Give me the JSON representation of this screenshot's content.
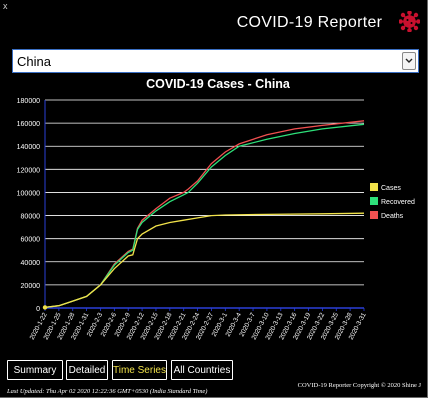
{
  "app": {
    "title": "COVID-19 Reporter",
    "corner_mark": "x"
  },
  "selector": {
    "selected": "China"
  },
  "tabs": [
    {
      "label": "Summary",
      "active": false
    },
    {
      "label": "Detailed",
      "active": false
    },
    {
      "label": "Time Series",
      "active": true
    },
    {
      "label": "All Countries",
      "active": false
    }
  ],
  "footer": {
    "last_updated": "Last Updated: Thu Apr 02 2020 12:22:36 GMT+0530 (India Standard Time)",
    "copyright": "COVID-19 Reporter Copyright © 2020 Shine J"
  },
  "colors": {
    "cases": "#f1e24a",
    "recovered": "#2ee07a",
    "deaths": "#f05050",
    "accent": "#c8102e"
  },
  "chart_data": {
    "type": "line",
    "title": "COVID-19 Cases - China",
    "xlabel": "",
    "ylabel": "",
    "ylim": [
      0,
      180000
    ],
    "yticks": [
      0,
      20000,
      40000,
      60000,
      80000,
      100000,
      120000,
      140000,
      160000,
      180000
    ],
    "xtick_labels": [
      "2020-1-22",
      "2020-1-25",
      "2020-1-28",
      "2020-1-31",
      "2020-2-3",
      "2020-2-6",
      "2020-2-9",
      "2020-2-12",
      "2020-2-15",
      "2020-2-18",
      "2020-2-21",
      "2020-2-24",
      "2020-2-27",
      "2020-3-1",
      "2020-3-4",
      "2020-3-7",
      "2020-3-10",
      "2020-3-13",
      "2020-3-16",
      "2020-3-19",
      "2020-3-22",
      "2020-3-25",
      "2020-3-28",
      "2020-3-31"
    ],
    "legend_position": "right",
    "grid": true,
    "series": [
      {
        "name": "Cases",
        "color": "#f1e24a",
        "points": [
          [
            0,
            500
          ],
          [
            3,
            2000
          ],
          [
            6,
            6000
          ],
          [
            9,
            10000
          ],
          [
            12,
            20000
          ],
          [
            15,
            34000
          ],
          [
            18,
            45000
          ],
          [
            19,
            46000
          ],
          [
            20,
            60000
          ],
          [
            21,
            64000
          ],
          [
            24,
            71000
          ],
          [
            27,
            74000
          ],
          [
            30,
            76000
          ],
          [
            33,
            78000
          ],
          [
            36,
            80000
          ],
          [
            39,
            80500
          ],
          [
            48,
            81000
          ],
          [
            60,
            81500
          ],
          [
            69,
            82000
          ]
        ]
      },
      {
        "name": "Recovered",
        "color": "#2ee07a",
        "points": [
          [
            0,
            500
          ],
          [
            3,
            2000
          ],
          [
            6,
            6000
          ],
          [
            9,
            10000
          ],
          [
            12,
            20000
          ],
          [
            15,
            37000
          ],
          [
            18,
            48000
          ],
          [
            19,
            50000
          ],
          [
            20,
            68000
          ],
          [
            21,
            74000
          ],
          [
            24,
            84000
          ],
          [
            27,
            92000
          ],
          [
            30,
            98000
          ],
          [
            31,
            100000
          ],
          [
            33,
            108000
          ],
          [
            36,
            122000
          ],
          [
            39,
            132000
          ],
          [
            42,
            140000
          ],
          [
            48,
            146000
          ],
          [
            54,
            151000
          ],
          [
            60,
            155000
          ],
          [
            69,
            159000
          ]
        ]
      },
      {
        "name": "Deaths",
        "color": "#f05050",
        "points": [
          [
            0,
            500
          ],
          [
            3,
            2000
          ],
          [
            6,
            6000
          ],
          [
            9,
            10000
          ],
          [
            12,
            20000
          ],
          [
            15,
            38000
          ],
          [
            18,
            49000
          ],
          [
            19,
            51000
          ],
          [
            20,
            69000
          ],
          [
            21,
            76000
          ],
          [
            24,
            86000
          ],
          [
            27,
            95000
          ],
          [
            30,
            100000
          ],
          [
            31,
            103000
          ],
          [
            33,
            110000
          ],
          [
            36,
            125000
          ],
          [
            39,
            135000
          ],
          [
            42,
            142000
          ],
          [
            48,
            150000
          ],
          [
            54,
            155000
          ],
          [
            60,
            158000
          ],
          [
            69,
            162000
          ]
        ]
      }
    ]
  }
}
